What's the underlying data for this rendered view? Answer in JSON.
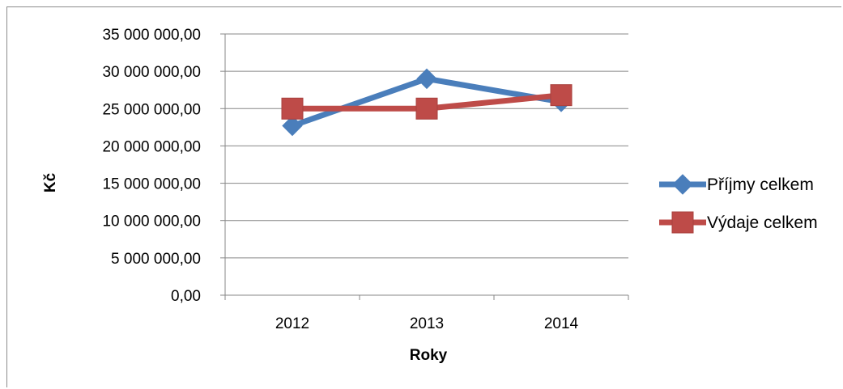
{
  "chart_data": {
    "type": "line",
    "title": "",
    "xlabel": "Roky",
    "ylabel": "Kč",
    "categories": [
      "2012",
      "2013",
      "2014"
    ],
    "ylim": [
      0,
      35000000
    ],
    "ytick_values": [
      0,
      5000000,
      10000000,
      15000000,
      20000000,
      25000000,
      30000000,
      35000000
    ],
    "ytick_labels": [
      "0,00",
      "5 000 000,00",
      "10 000 000,00",
      "15 000 000,00",
      "20 000 000,00",
      "25 000 000,00",
      "30 000 000,00",
      "35 000 000,00"
    ],
    "grid": "horizontal",
    "legend_position": "right",
    "series": [
      {
        "name": "Příjmy celkem",
        "values": [
          22700000,
          29000000,
          25900000
        ],
        "color": "#4a7ebb",
        "marker": "diamond"
      },
      {
        "name": "Výdaje celkem",
        "values": [
          25000000,
          25000000,
          26800000
        ],
        "color": "#be4b48",
        "marker": "square"
      }
    ]
  }
}
